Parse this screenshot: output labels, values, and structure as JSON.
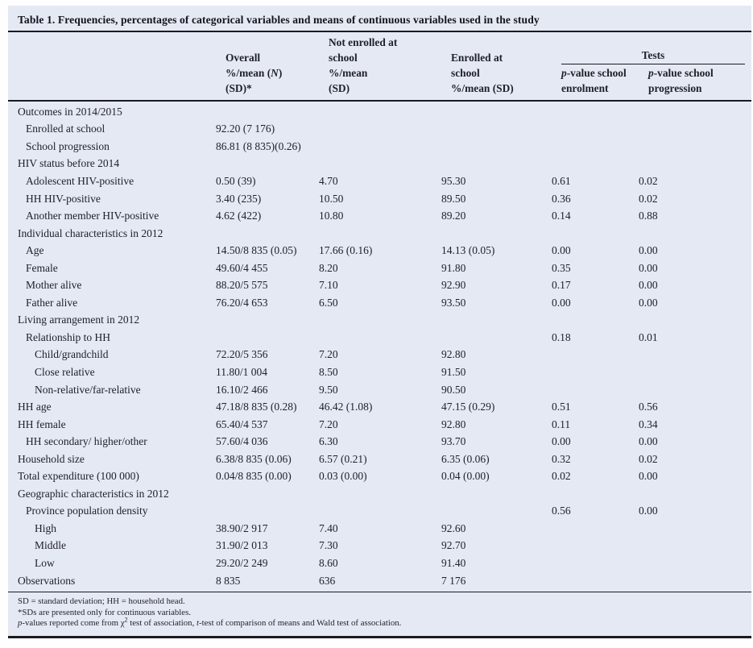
{
  "title": "Table 1. Frequencies, percentages of categorical variables and means of continuous variables used in the study",
  "header": {
    "overall": {
      "l1": "Overall",
      "l2_pre": "%/mean (",
      "l2_it": "N",
      "l2_post": ")",
      "l3": "(SD)*"
    },
    "not_enrolled": {
      "l1": "Not enrolled at",
      "l2": "school",
      "l3": "%/mean",
      "l4": "(SD)"
    },
    "enrolled": {
      "l1": "Enrolled at",
      "l2": "school",
      "l3": "%/mean (SD)"
    },
    "tests_label": "Tests",
    "p_enrolment": {
      "it": "p",
      "rest": "-value school",
      "l2": "enrolment"
    },
    "p_progression": {
      "it": "p",
      "rest": "-value school",
      "l2": "progression"
    }
  },
  "rows": [
    {
      "label": "Outcomes in 2014/2015",
      "indent": 0,
      "cells": [
        "",
        "",
        "",
        "",
        ""
      ]
    },
    {
      "label": "Enrolled at school",
      "indent": 1,
      "cells": [
        "92.20 (7 176)",
        "",
        "",
        "",
        ""
      ]
    },
    {
      "label": "School progression",
      "indent": 1,
      "cells": [
        "86.81 (8 835)(0.26)",
        "",
        "",
        "",
        ""
      ]
    },
    {
      "label": "HIV status before 2014",
      "indent": 0,
      "cells": [
        "",
        "",
        "",
        "",
        ""
      ]
    },
    {
      "label": "Adolescent HIV-positive",
      "indent": 1,
      "cells": [
        "0.50 (39)",
        "4.70",
        "95.30",
        "0.61",
        "0.02"
      ]
    },
    {
      "label": "HH HIV-positive",
      "indent": 1,
      "cells": [
        "3.40 (235)",
        "10.50",
        "89.50",
        "0.36",
        "0.02"
      ]
    },
    {
      "label": "Another member HIV-positive",
      "indent": 1,
      "cells": [
        "4.62 (422)",
        "10.80",
        "89.20",
        "0.14",
        "0.88"
      ]
    },
    {
      "label": "Individual characteristics in 2012",
      "indent": 0,
      "cells": [
        "",
        "",
        "",
        "",
        ""
      ]
    },
    {
      "label": "Age",
      "indent": 1,
      "cells": [
        "14.50/8 835 (0.05)",
        "17.66 (0.16)",
        "14.13 (0.05)",
        "0.00",
        "0.00"
      ]
    },
    {
      "label": "Female",
      "indent": 1,
      "cells": [
        "49.60/4 455",
        "8.20",
        "91.80",
        "0.35",
        "0.00"
      ]
    },
    {
      "label": "Mother alive",
      "indent": 1,
      "cells": [
        "88.20/5 575",
        "7.10",
        "92.90",
        "0.17",
        "0.00"
      ]
    },
    {
      "label": "Father alive",
      "indent": 1,
      "cells": [
        "76.20/4 653",
        "6.50",
        "93.50",
        "0.00",
        "0.00"
      ]
    },
    {
      "label": "Living arrangement in 2012",
      "indent": 0,
      "cells": [
        "",
        "",
        "",
        "",
        ""
      ]
    },
    {
      "label": "Relationship to HH",
      "indent": 1,
      "cells": [
        "",
        "",
        "",
        "0.18",
        "0.01"
      ]
    },
    {
      "label": "Child/grandchild",
      "indent": 2,
      "cells": [
        "72.20/5 356",
        "7.20",
        "92.80",
        "",
        ""
      ]
    },
    {
      "label": "Close relative",
      "indent": 2,
      "cells": [
        "11.80/1 004",
        "8.50",
        "91.50",
        "",
        ""
      ]
    },
    {
      "label": "Non-relative/far-relative",
      "indent": 2,
      "cells": [
        "16.10/2 466",
        "9.50",
        "90.50",
        "",
        ""
      ]
    },
    {
      "label": "HH age",
      "indent": 0,
      "cells": [
        "47.18/8 835 (0.28)",
        "46.42 (1.08)",
        "47.15 (0.29)",
        "0.51",
        "0.56"
      ]
    },
    {
      "label": "HH female",
      "indent": 0,
      "cells": [
        "65.40/4 537",
        "7.20",
        "92.80",
        "0.11",
        "0.34"
      ]
    },
    {
      "label": "HH secondary/ higher/other",
      "indent": 1,
      "cells": [
        "57.60/4 036",
        "6.30",
        "93.70",
        "0.00",
        "0.00"
      ]
    },
    {
      "label": "Household size",
      "indent": 0,
      "cells": [
        "6.38/8 835 (0.06)",
        "6.57 (0.21)",
        "6.35 (0.06)",
        "0.32",
        "0.02"
      ]
    },
    {
      "label": "Total expenditure (100 000)",
      "indent": 0,
      "cells": [
        "0.04/8 835 (0.00)",
        "0.03 (0.00)",
        "0.04 (0.00)",
        "0.02",
        "0.00"
      ]
    },
    {
      "label": "Geographic characteristics in 2012",
      "indent": 0,
      "cells": [
        "",
        "",
        "",
        "",
        ""
      ]
    },
    {
      "label": "Province population density",
      "indent": 1,
      "cells": [
        "",
        "",
        "",
        "0.56",
        "0.00"
      ]
    },
    {
      "label": "High",
      "indent": 2,
      "cells": [
        "38.90/2 917",
        "7.40",
        "92.60",
        "",
        ""
      ]
    },
    {
      "label": "Middle",
      "indent": 2,
      "cells": [
        "31.90/2 013",
        "7.30",
        "92.70",
        "",
        ""
      ]
    },
    {
      "label": "Low",
      "indent": 2,
      "cells": [
        "29.20/2 249",
        "8.60",
        "91.40",
        "",
        ""
      ]
    },
    {
      "label": "Observations",
      "indent": 0,
      "cells": [
        "8 835",
        "636",
        "7 176",
        "",
        ""
      ]
    }
  ],
  "footnotes": {
    "line1": "SD = standard deviation; HH = household head.",
    "line2": "*SDs are presented only for continuous variables.",
    "line3": [
      {
        "style": "i",
        "text": "p"
      },
      {
        "style": "",
        "text": "-values reported come from χ"
      },
      {
        "style": "sup",
        "text": "2"
      },
      {
        "style": "",
        "text": " test of association, "
      },
      {
        "style": "i",
        "text": "t"
      },
      {
        "style": "",
        "text": "-test of comparison of means and Wald test of association."
      }
    ]
  },
  "colors": {
    "panel_bg": "#e5e9f3",
    "text": "#20212b",
    "rule": "#1a1b22"
  }
}
